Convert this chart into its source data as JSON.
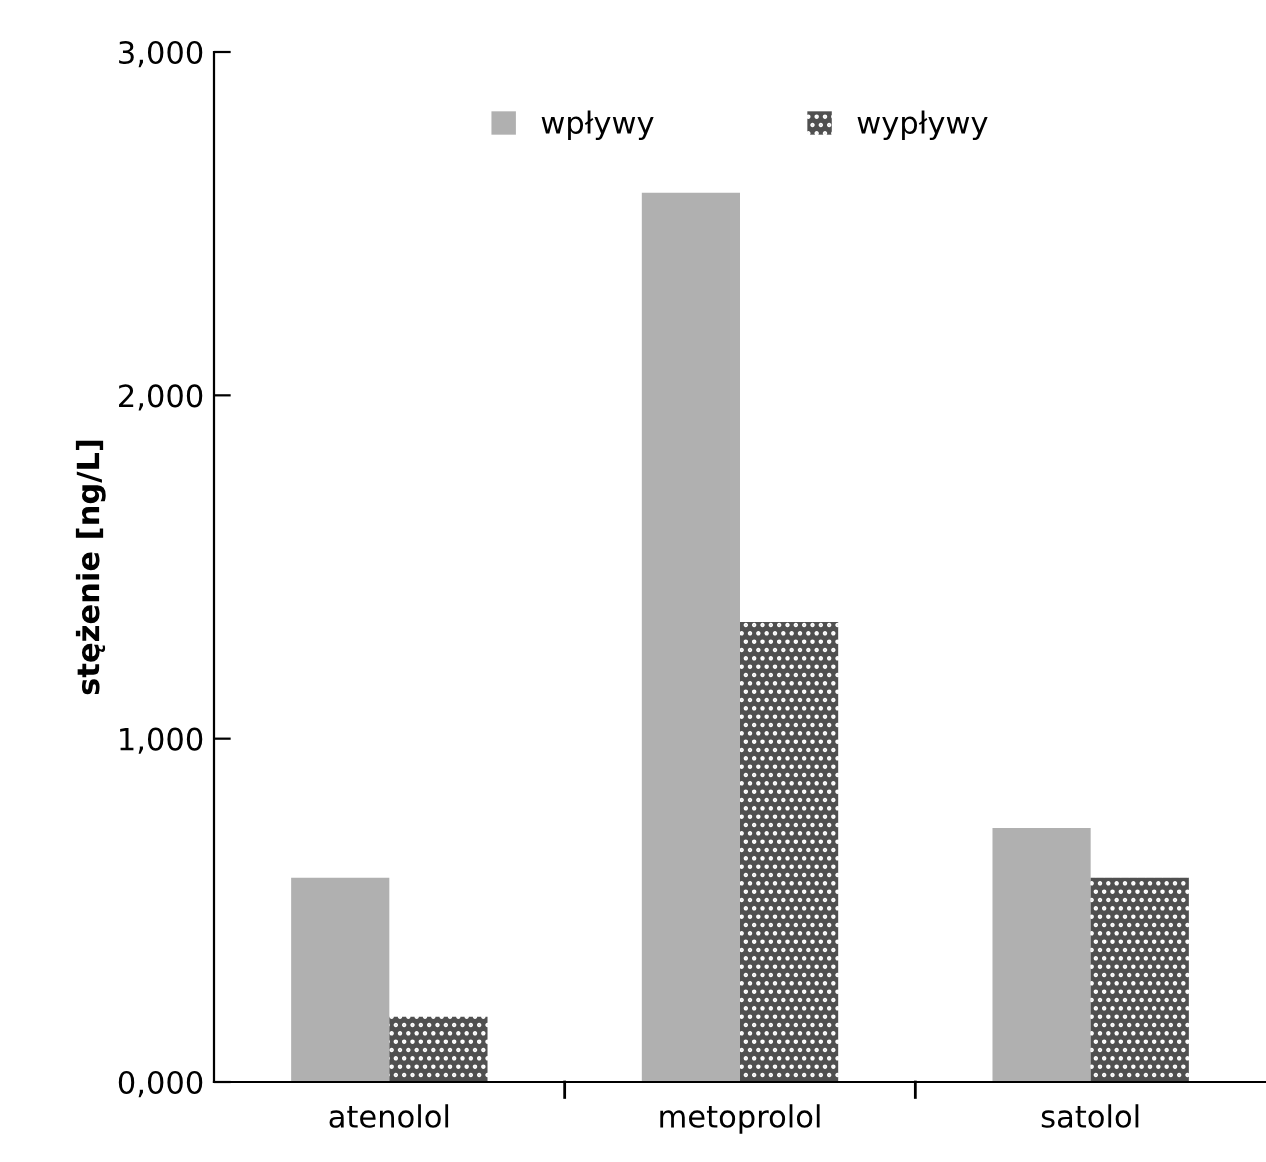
{
  "chart_data": {
    "type": "bar",
    "ylabel": "stężenie [ng/L]",
    "categories": [
      "atenolol",
      "metoprolol",
      "satolol"
    ],
    "series": [
      {
        "name": "wpływy",
        "color": "#b0b0b0",
        "values": [
          595,
          2590,
          740
        ]
      },
      {
        "name": "wypływy",
        "color": "#505050",
        "values": [
          190,
          1340,
          595
        ]
      }
    ],
    "ylim": [
      0,
      3000
    ],
    "yticks": [
      {
        "value": 0,
        "label": "0,000"
      },
      {
        "value": 1000,
        "label": "1,000"
      },
      {
        "value": 2000,
        "label": "2,000"
      },
      {
        "value": 3000,
        "label": "3,000"
      }
    ],
    "grid": false,
    "legend": "top"
  }
}
